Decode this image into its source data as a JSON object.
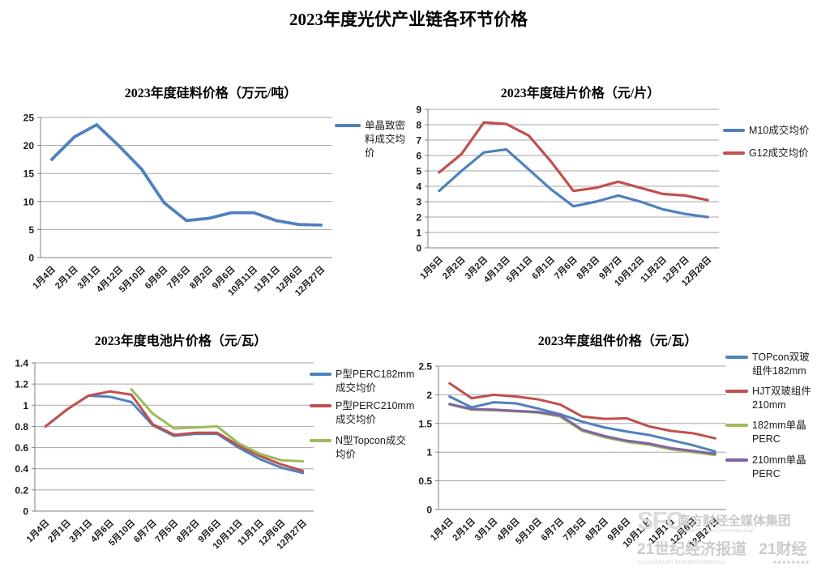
{
  "page": {
    "title": "2023年度光伏产业链各环节价格"
  },
  "chart_data": [
    {
      "id": "silicon-material-price",
      "type": "line",
      "title": "2023年度硅料价格（万元/吨）",
      "xlabel": "",
      "ylabel": "",
      "ylim": [
        0,
        25
      ],
      "ystep": 5,
      "grid": true,
      "legend_position": "right",
      "categories": [
        "1月4日",
        "2月1日",
        "3月1日",
        "4月12日",
        "5月10日",
        "6月8日",
        "7月5日",
        "8月2日",
        "9月6日",
        "10月11日",
        "11月1日",
        "12月6日",
        "12月27日"
      ],
      "series": [
        {
          "name": "单晶致密料成交均价",
          "label_lines": [
            "单晶致密",
            "料成交均",
            "价"
          ],
          "color": "#4F81BD",
          "values": [
            17.5,
            21.5,
            23.7,
            19.9,
            15.8,
            9.8,
            6.6,
            7.0,
            8.0,
            8.0,
            6.6,
            5.9,
            5.8
          ]
        }
      ]
    },
    {
      "id": "wafer-price",
      "type": "line",
      "title": "2023年度硅片价格（元/片）",
      "xlabel": "",
      "ylabel": "",
      "ylim": [
        0,
        9
      ],
      "ystep": 1,
      "grid": true,
      "legend_position": "right",
      "categories": [
        "1月5日",
        "2月2日",
        "3月2日",
        "4月13日",
        "5月11日",
        "6月1日",
        "7月6日",
        "8月3日",
        "9月7日",
        "10月12日",
        "11月2日",
        "12月7日",
        "12月28日"
      ],
      "series": [
        {
          "name": "M10成交均价",
          "label_lines": [
            "M10成交均价"
          ],
          "color": "#4F81BD",
          "values": [
            3.7,
            5.0,
            6.2,
            6.4,
            5.1,
            3.8,
            2.7,
            3.0,
            3.4,
            3.0,
            2.5,
            2.2,
            2.0
          ]
        },
        {
          "name": "G12成交均价",
          "label_lines": [
            "G12成交均价"
          ],
          "color": "#C0504D",
          "values": [
            4.9,
            6.1,
            8.15,
            8.05,
            7.3,
            5.6,
            3.7,
            3.9,
            4.3,
            3.9,
            3.5,
            3.4,
            3.1
          ]
        }
      ]
    },
    {
      "id": "cell-price",
      "type": "line",
      "title": "2023年度电池片价格（元/瓦）",
      "xlabel": "",
      "ylabel": "",
      "ylim": [
        0,
        1.4
      ],
      "ystep": 0.2,
      "grid": true,
      "legend_position": "right",
      "categories": [
        "1月4日",
        "2月1日",
        "3月1日",
        "4月6日",
        "5月10日",
        "6月7日",
        "7月5日",
        "8月2日",
        "9月6日",
        "10月11日",
        "11月1日",
        "12月6日",
        "12月27日"
      ],
      "series": [
        {
          "name": "P型PERC182mm成交均价",
          "label_lines": [
            "P型PERC182mm",
            "成交均价"
          ],
          "color": "#4F81BD",
          "values": [
            0.8,
            0.96,
            1.09,
            1.08,
            1.03,
            0.81,
            0.71,
            0.73,
            0.73,
            0.6,
            0.49,
            0.41,
            0.36
          ]
        },
        {
          "name": "P型PERC210mm成交均价",
          "label_lines": [
            "P型PERC210mm",
            "成交均价"
          ],
          "color": "#C0504D",
          "values": [
            0.8,
            0.96,
            1.09,
            1.13,
            1.1,
            0.82,
            0.72,
            0.74,
            0.74,
            0.62,
            0.52,
            0.44,
            0.38
          ]
        },
        {
          "name": "N型Topcon成交均价",
          "label_lines": [
            "N型Topcon成交",
            "均价"
          ],
          "color": "#9BBB59",
          "values": [
            null,
            null,
            null,
            null,
            1.15,
            0.92,
            0.78,
            0.79,
            0.8,
            0.64,
            0.54,
            0.48,
            0.47
          ]
        }
      ]
    },
    {
      "id": "module-price",
      "type": "line",
      "title": "2023年度组件价格（元/瓦）",
      "xlabel": "",
      "ylabel": "",
      "ylim": [
        0,
        2.5
      ],
      "ystep": 0.5,
      "grid": true,
      "legend_position": "right",
      "categories": [
        "1月4日",
        "2月1日",
        "3月1日",
        "4月6日",
        "5月10日",
        "6月7日",
        "7月5日",
        "8月2日",
        "9月6日",
        "10月11日",
        "11月1日",
        "12月6日",
        "12月27日"
      ],
      "series": [
        {
          "name": "TOPcon双玻组件182mm",
          "label_lines": [
            "TOPcon双玻",
            "组件182mm"
          ],
          "color": "#4F81BD",
          "values": [
            1.97,
            1.78,
            1.87,
            1.85,
            1.76,
            1.66,
            1.53,
            1.43,
            1.36,
            1.3,
            1.21,
            1.12,
            1.01
          ]
        },
        {
          "name": "HJT双玻组件210mm",
          "label_lines": [
            "HJT双玻组件",
            "210mm"
          ],
          "color": "#C0504D",
          "values": [
            2.2,
            1.94,
            2.0,
            1.97,
            1.92,
            1.83,
            1.62,
            1.58,
            1.59,
            1.45,
            1.37,
            1.33,
            1.24
          ]
        },
        {
          "name": "182mm单晶PERC",
          "label_lines": [
            "182mm单晶",
            "PERC"
          ],
          "color": "#9BBB59",
          "values": [
            1.83,
            1.74,
            1.73,
            1.71,
            1.69,
            1.62,
            1.37,
            1.26,
            1.18,
            1.13,
            1.05,
            1.0,
            0.95
          ]
        },
        {
          "name": "210mm单晶PERC",
          "label_lines": [
            "210mm单晶",
            "PERC"
          ],
          "color": "#8064A2",
          "values": [
            1.84,
            1.75,
            1.74,
            1.72,
            1.7,
            1.64,
            1.39,
            1.28,
            1.2,
            1.15,
            1.07,
            1.02,
            0.97
          ]
        }
      ]
    }
  ],
  "watermark": {
    "sfc": "SFC",
    "group_cn": "南方财经全媒体集团",
    "group_en": "Southern Finance Omnimedia Corp.",
    "herald_cn": "21世纪经济报道",
    "fin_cn": "21财经",
    "herald_en": "21st CENTURY BUSINESS HERALD",
    "tiles": "■ ■ ■ ■ ■ ■ ■ ■"
  }
}
